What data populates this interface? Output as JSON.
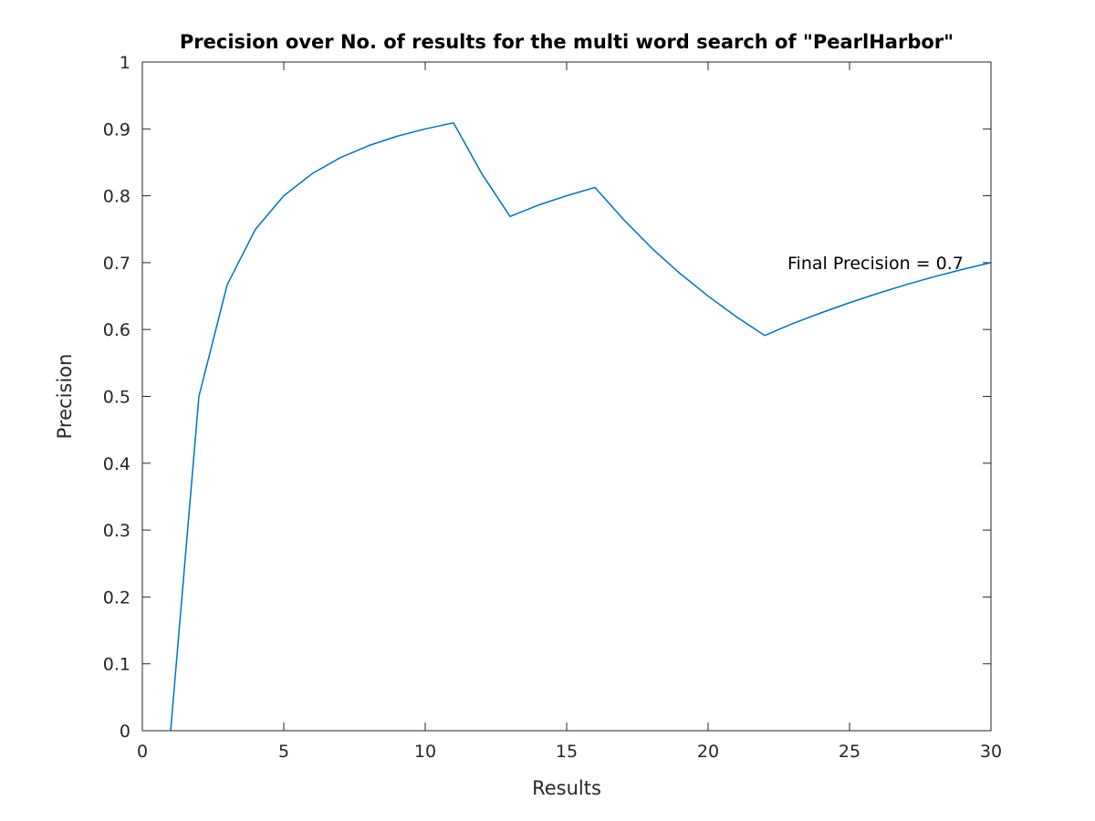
{
  "chart_data": {
    "type": "line",
    "title": "Precision over No. of results for the multi word search of \"PearlHarbor\"",
    "xlabel": "Results",
    "ylabel": "Precision",
    "xlim": [
      0,
      30
    ],
    "ylim": [
      0,
      1
    ],
    "xticks": [
      0,
      5,
      10,
      15,
      20,
      25,
      30
    ],
    "yticks": [
      0,
      0.1,
      0.2,
      0.3,
      0.4,
      0.5,
      0.6,
      0.7,
      0.8,
      0.9,
      1
    ],
    "xtick_labels": [
      "0",
      "5",
      "10",
      "15",
      "20",
      "25",
      "30"
    ],
    "ytick_labels": [
      "0",
      "0.1",
      "0.2",
      "0.3",
      "0.4",
      "0.5",
      "0.6",
      "0.7",
      "0.8",
      "0.9",
      "1"
    ],
    "grid": false,
    "line_color": "#0072BD",
    "series": [
      {
        "x": [
          1,
          2,
          3,
          4,
          5,
          6,
          7,
          8,
          9,
          10,
          11,
          12,
          13,
          14,
          15,
          16,
          17,
          18,
          19,
          20,
          21,
          22,
          23,
          24,
          25,
          26,
          27,
          28,
          29,
          30
        ],
        "values": [
          0,
          0.5,
          0.667,
          0.75,
          0.8,
          0.833,
          0.857,
          0.875,
          0.889,
          0.9,
          0.909,
          0.833,
          0.769,
          0.786,
          0.8,
          0.8125,
          0.765,
          0.722,
          0.684,
          0.65,
          0.619,
          0.591,
          0.609,
          0.625,
          0.64,
          0.654,
          0.667,
          0.679,
          0.69,
          0.7
        ]
      }
    ],
    "annotations": [
      {
        "text": "Final Precision = 0.7",
        "x": 23,
        "y": 0.7
      }
    ]
  }
}
